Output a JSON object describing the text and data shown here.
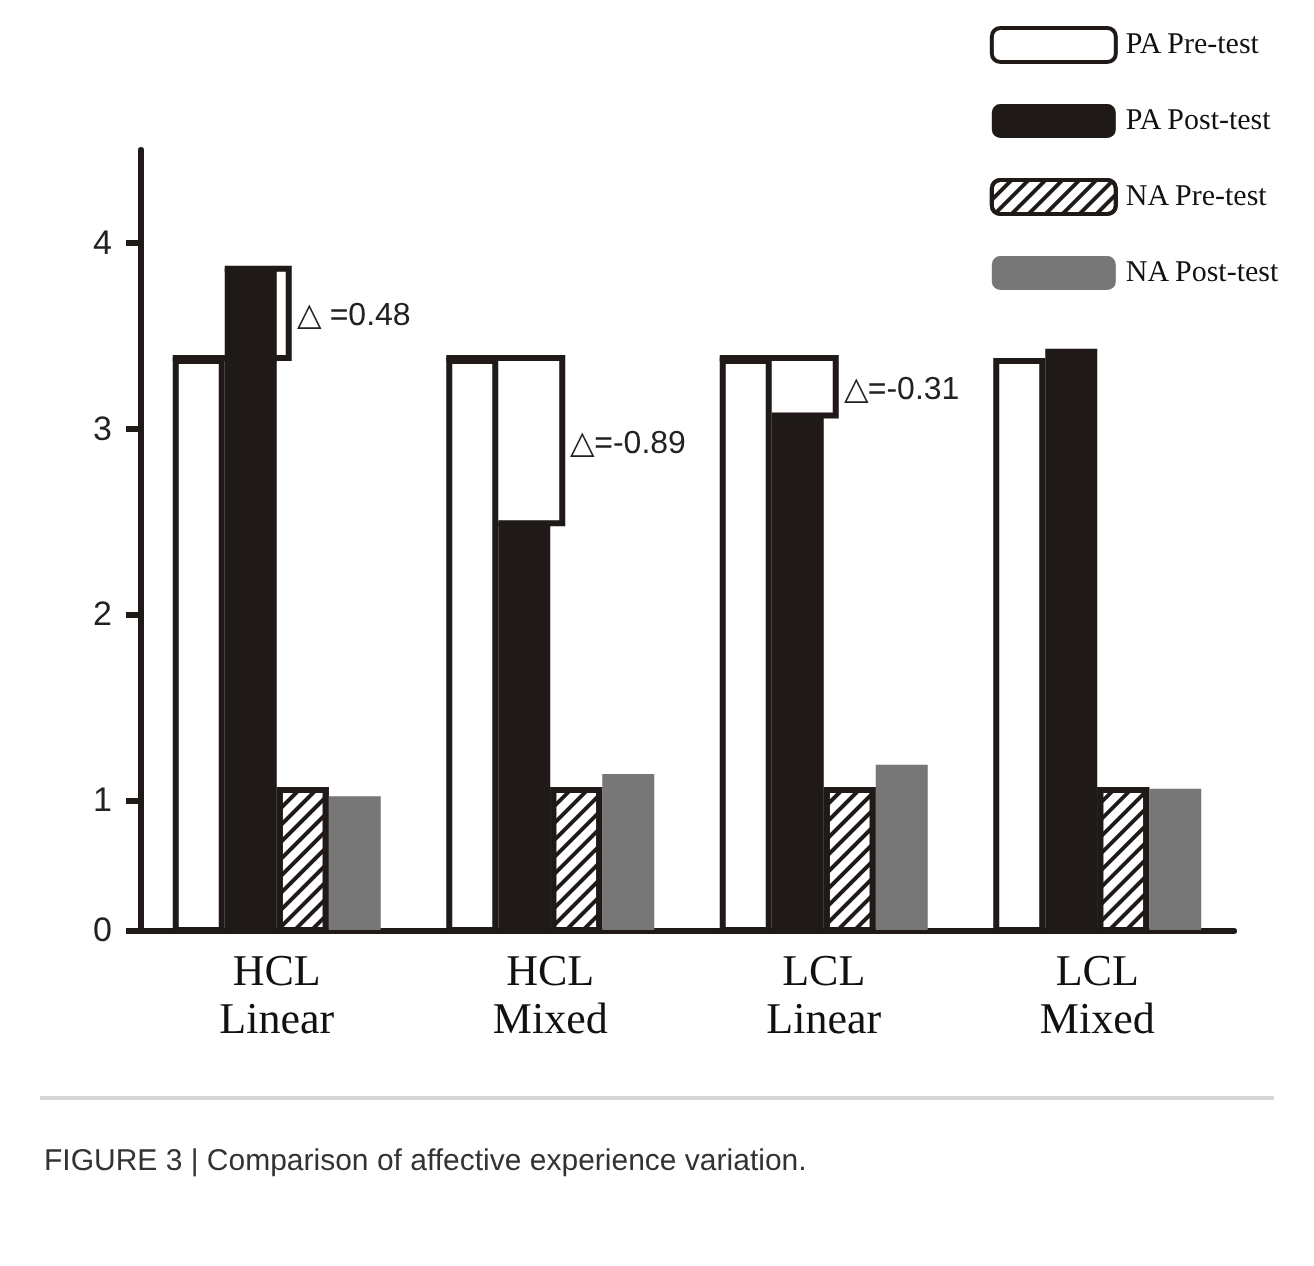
{
  "chart_data": {
    "type": "bar",
    "categories": [
      "HCL\nLinear",
      "HCL\nMixed",
      "LCL\nLinear",
      "LCL\nMixed"
    ],
    "series": [
      {
        "name": "PA Pre-test",
        "color": "#ffffff",
        "values": [
          3.38,
          3.38,
          3.38,
          3.38
        ]
      },
      {
        "name": "PA Post-test",
        "color": "#1f1a17",
        "values": [
          3.86,
          2.49,
          3.07,
          3.43
        ]
      },
      {
        "name": "NA Pre-test",
        "color": "#ffffff",
        "values": [
          1.07,
          1.07,
          1.07,
          1.07
        ]
      },
      {
        "name": "NA Post-test",
        "color": "#777777",
        "values": [
          1.02,
          1.14,
          1.19,
          1.06
        ]
      }
    ],
    "ylim": [
      0.3,
      4.5
    ],
    "yticks": [
      {
        "value": 0.3,
        "label": "0"
      },
      1,
      2,
      3,
      4
    ],
    "grid": false,
    "legend": "top right",
    "annotations": [
      "△ =0.48",
      "△=-0.89",
      "△=-0.31",
      "FIGURE 3 | Comparison of affective experience variation."
    ]
  }
}
